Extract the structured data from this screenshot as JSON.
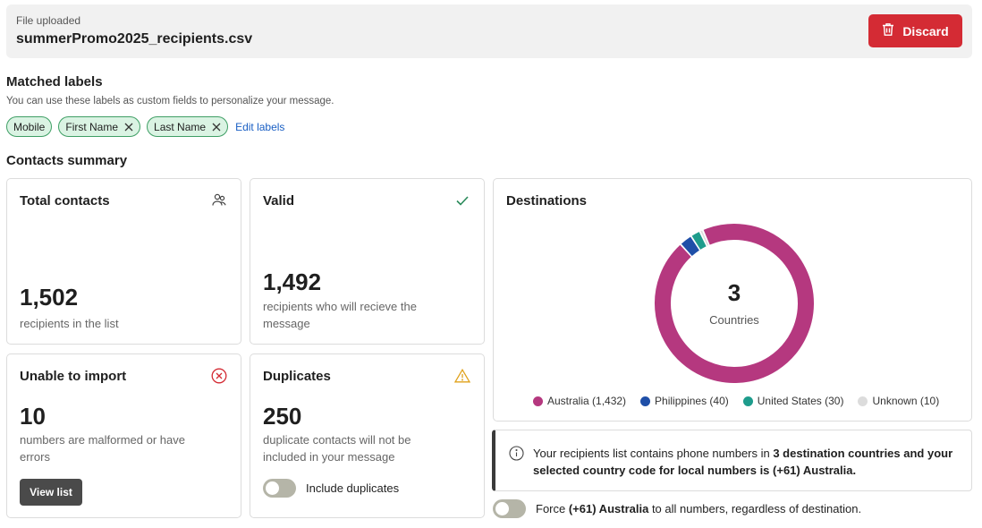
{
  "upload": {
    "caption": "File uploaded",
    "filename": "summerPromo2025_recipients.csv",
    "discard_label": "Discard",
    "discard_color": "#d42b34"
  },
  "matched": {
    "title": "Matched labels",
    "subtitle": "You can use these labels as custom fields to personalize your message.",
    "chips": [
      "Mobile",
      "First Name",
      "Last Name"
    ],
    "edit_label": "Edit labels"
  },
  "summary": {
    "title": "Contacts summary",
    "total": {
      "title": "Total contacts",
      "value": "1,502",
      "desc": "recipients in the list",
      "icon": "people-icon"
    },
    "valid": {
      "title": "Valid",
      "value": "1,492",
      "desc": "recipients who will recieve the message",
      "icon": "check-icon"
    },
    "unable": {
      "title": "Unable to import",
      "value": "10",
      "desc": "numbers are malformed or have errors",
      "button": "View list",
      "icon": "error-circle-icon"
    },
    "duplicates": {
      "title": "Duplicates",
      "value": "250",
      "desc": "duplicate contacts will not be included in your message",
      "toggle_label": "Include duplicates",
      "icon": "warning-icon"
    }
  },
  "destinations": {
    "title": "Destinations",
    "center_value": "3",
    "center_label": "Countries",
    "legend": [
      {
        "label": "Australia (1,432)",
        "color": "#b5387f"
      },
      {
        "label": "Philippines (40)",
        "color": "#1f4fa8"
      },
      {
        "label": "United States (30)",
        "color": "#1e9c8c"
      },
      {
        "label": "Unknown (10)",
        "color": "#dcdcdc"
      }
    ]
  },
  "chart_data": {
    "type": "pie",
    "categories": [
      "Australia",
      "Philippines",
      "United States",
      "Unknown"
    ],
    "values": [
      1432,
      40,
      30,
      10
    ],
    "title": "Destinations"
  },
  "info": {
    "text_plain": "Your recipients list contains phone numbers in ",
    "text_bold": "3 destination countries and your selected country code for local numbers is (+61) Australia."
  },
  "force": {
    "label_prefix": "Force ",
    "label_bold": "(+61) Australia",
    "label_suffix": " to all numbers, regardless of destination."
  }
}
